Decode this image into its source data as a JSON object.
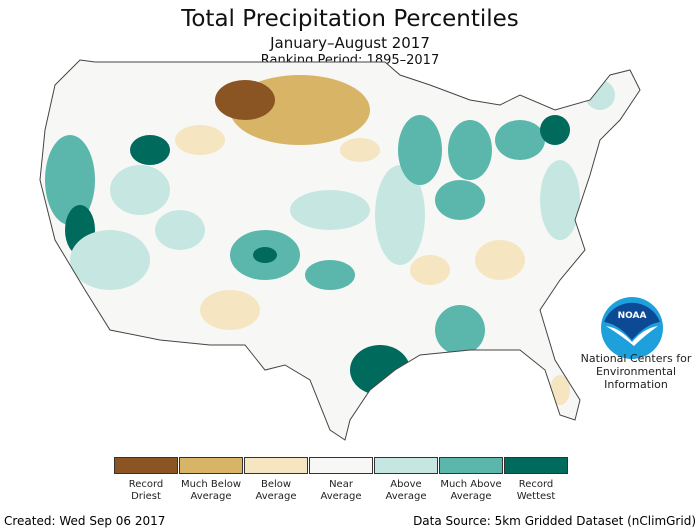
{
  "title": "Total Precipitation Percentiles",
  "subtitle": "January–August 2017",
  "ranking_period": "Ranking Period: 1895–2017",
  "legend": [
    {
      "label": "Record Driest",
      "color": "#8b5523"
    },
    {
      "label": "Much Below Average",
      "color": "#d8b467"
    },
    {
      "label": "Below Average",
      "color": "#f5e5c0"
    },
    {
      "label": "Near Average",
      "color": "#f7f8f6"
    },
    {
      "label": "Above Average",
      "color": "#c6e7e1"
    },
    {
      "label": "Much Above Average",
      "color": "#5bb7ac"
    },
    {
      "label": "Record Wettest",
      "color": "#006a5d"
    }
  ],
  "logo": {
    "text": "NOAA",
    "org": "National Centers for Environmental Information"
  },
  "footer": {
    "created": "Created: Wed Sep 06 2017",
    "source": "Data Source: 5km Gridded Dataset (nClimGrid)"
  }
}
